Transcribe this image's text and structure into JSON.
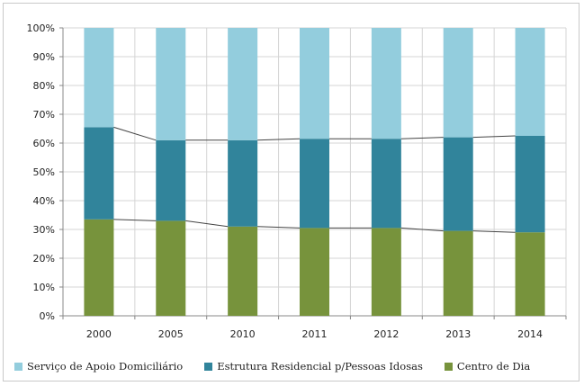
{
  "chart_data": {
    "type": "bar",
    "stacked": true,
    "percent": true,
    "categories": [
      "2000",
      "2005",
      "2010",
      "2011",
      "2012",
      "2013",
      "2014"
    ],
    "series": [
      {
        "name": "Centro de Dia",
        "color": "#77933c",
        "values": [
          33.5,
          33,
          31,
          30.5,
          30.5,
          29.5,
          29
        ]
      },
      {
        "name": "Estrutura Residencial p/Pessoas Idosas",
        "color": "#31849b",
        "values": [
          32,
          28,
          30,
          31,
          31,
          32.5,
          33.5
        ]
      },
      {
        "name": "Serviço de Apoio Domiciliário",
        "color": "#93cddd",
        "values": [
          34.5,
          39,
          39,
          38.5,
          38.5,
          38,
          37.5
        ]
      }
    ],
    "ylim": [
      0,
      100
    ],
    "yticks": [
      "0%",
      "10%",
      "20%",
      "30%",
      "40%",
      "50%",
      "60%",
      "70%",
      "80%",
      "90%",
      "100%"
    ],
    "grid": true,
    "legend": "bottom",
    "legend_order": [
      2,
      1,
      0
    ],
    "series_lines": true
  }
}
